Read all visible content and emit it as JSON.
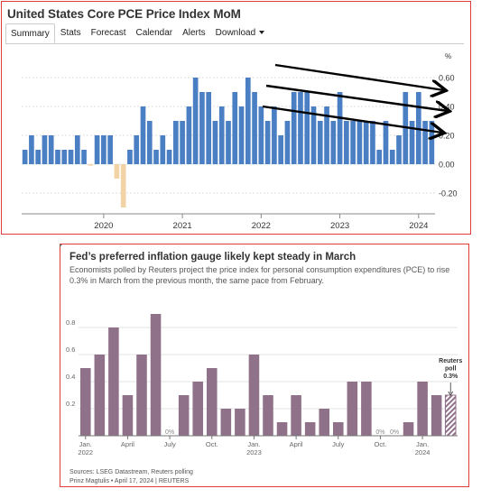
{
  "top_panel": {
    "title": "United States Core PCE Price Index MoM",
    "tabs": [
      {
        "label": "Summary",
        "active": true
      },
      {
        "label": "Stats",
        "active": false
      },
      {
        "label": "Forecast",
        "active": false
      },
      {
        "label": "Calendar",
        "active": false
      },
      {
        "label": "Alerts",
        "active": false
      },
      {
        "label": "Download",
        "active": false
      }
    ]
  },
  "bottom_panel": {
    "title": "Fed’s preferred inflation gauge likely kept steady in March",
    "subtitle": "Economists polled by Reuters project the price index for personal consumption expenditures (PCE) to rise 0.3% in March from the previous month, the same pace from February.",
    "source": "Sources: LSEG Datastream, Reuters polling",
    "credit": "Prinz Magtulis • April 17, 2024 | REUTERS"
  },
  "colors": {
    "panel_border": "#e23b3b",
    "bar_positive": "#4a7fc4",
    "bar_negative": "#f2d3a6",
    "bar_purple": "#8f7189",
    "trend_arrow": "#000000"
  },
  "chart_data": [
    {
      "type": "bar",
      "title": "United States Core PCE Price Index MoM",
      "ylabel": "%",
      "ylim": [
        -0.3,
        0.7
      ],
      "y_ticks": [
        -0.2,
        0,
        0.2,
        0.4,
        0.6
      ],
      "y_tick_labels": [
        "-0.20",
        "0.00",
        "0.20",
        "0.40",
        "0.60"
      ],
      "x_tick_labels": [
        {
          "label": "2020",
          "index": 12
        },
        {
          "label": "2021",
          "index": 24
        },
        {
          "label": "2022",
          "index": 36
        },
        {
          "label": "2023",
          "index": 48
        },
        {
          "label": "2024",
          "index": 60
        }
      ],
      "values": [
        0.1,
        0.2,
        0.1,
        0.2,
        0.2,
        0.1,
        0.1,
        0.1,
        0.2,
        0.1,
        -0.01,
        0.2,
        0.2,
        0.2,
        -0.1,
        -0.3,
        0.1,
        0.2,
        0.4,
        0.3,
        0.1,
        0.2,
        0.1,
        0.3,
        0.3,
        0.4,
        0.6,
        0.5,
        0.5,
        0.3,
        0.4,
        0.3,
        0.5,
        0.4,
        0.6,
        0.5,
        0.4,
        0.3,
        0.4,
        0.2,
        0.3,
        0.5,
        0.5,
        0.5,
        0.4,
        0.3,
        0.4,
        0.3,
        0.5,
        0.3,
        0.3,
        0.3,
        0.3,
        0.3,
        0.1,
        0.3,
        0.1,
        0.2,
        0.5,
        0.3,
        0.5,
        0.3,
        0.3
      ],
      "grid": true,
      "annotations": [
        "three downward-sloping trend arrows"
      ]
    },
    {
      "type": "bar",
      "title": "Fed’s preferred inflation gauge likely kept steady in March",
      "ylim": [
        0,
        1.0
      ],
      "y_ticks": [
        0.2,
        0.4,
        0.6,
        0.8
      ],
      "y_tick_labels": [
        "0.2",
        "0.4",
        "0.6",
        "0.8"
      ],
      "x_tick_labels": [
        {
          "label": "Jan.",
          "sublabel": "2022",
          "index": 0
        },
        {
          "label": "April",
          "index": 3
        },
        {
          "label": "July",
          "index": 6
        },
        {
          "label": "Oct.",
          "index": 9
        },
        {
          "label": "Jan.",
          "sublabel": "2023",
          "index": 12
        },
        {
          "label": "April",
          "index": 15
        },
        {
          "label": "July",
          "index": 18
        },
        {
          "label": "Oct.",
          "index": 21
        },
        {
          "label": "Jan.",
          "sublabel": "2024",
          "index": 24
        }
      ],
      "values": [
        0.5,
        0.6,
        0.8,
        0.3,
        0.6,
        0.9,
        0,
        0.3,
        0.4,
        0.5,
        0.2,
        0.2,
        0.6,
        0.3,
        0.1,
        0.3,
        0.1,
        0.2,
        0.1,
        0.4,
        0.4,
        0,
        0,
        0.1,
        0.4,
        0.3,
        0.3
      ],
      "zero_labels": [
        {
          "index": 6,
          "text": "0%"
        },
        {
          "index": 21,
          "text": "0%"
        },
        {
          "index": 22,
          "text": "0%"
        }
      ],
      "forecast_index": 26,
      "forecast_label": [
        "Reuters",
        "poll",
        "0.3%"
      ],
      "grid": true
    }
  ]
}
